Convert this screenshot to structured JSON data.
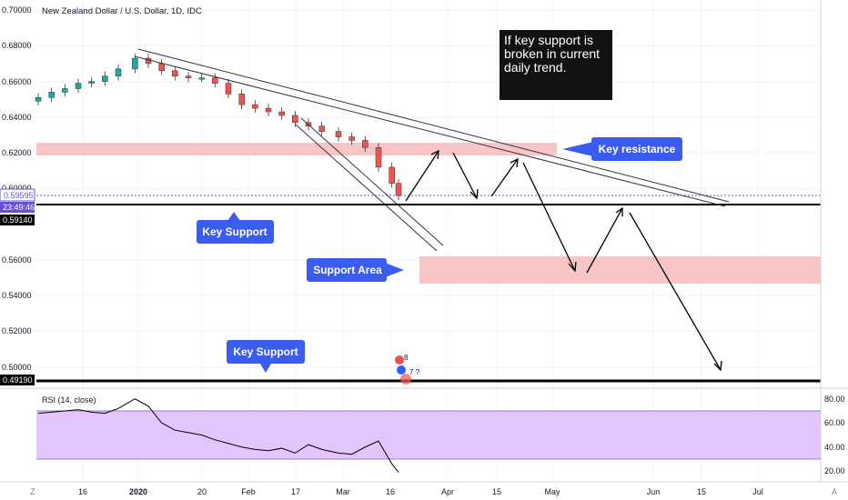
{
  "header": {
    "symbol_title": "New Zealand Dollar / U.S. Dollar, 1D, IDC"
  },
  "note": {
    "lines": [
      "If key support is",
      "broken in current",
      "daily trend."
    ]
  },
  "labels": {
    "key_resistance": "Key resistance",
    "key_support_1": "Key Support",
    "support_area": "Support Area",
    "key_support_2": "Key Support"
  },
  "price_axis": {
    "ticks": [
      "0.70000",
      "0.68000",
      "0.66000",
      "0.64000",
      "0.62000",
      "0.60000",
      "0.56000",
      "0.54000",
      "0.52000",
      "0.50000"
    ],
    "last_price": "0.59595",
    "countdown": "23:49:46",
    "support_level_1": "0.59140",
    "support_level_2": "0.49190"
  },
  "rsi": {
    "title": "RSI (14, close)",
    "ticks": [
      "80.00",
      "60.00",
      "40.00",
      "20.00"
    ]
  },
  "time_axis": {
    "labels": [
      "16",
      "2020",
      "20",
      "Feb",
      "17",
      "Mar",
      "16",
      "Apr",
      "15",
      "May",
      "Jun",
      "15",
      "Jul"
    ],
    "corner_left": "Z",
    "corner_right": "A"
  },
  "events": {
    "count_1": "8",
    "count_2": "7 ?"
  },
  "colors": {
    "up_candle": "#26a69a",
    "down_candle": "#ef5350",
    "zone_fill": "#f7c5c5",
    "label_fill": "#3b5cf0",
    "rsi_band": "#e1c5fc",
    "rsi_line": "#000000"
  },
  "chart_data": {
    "type": "candlestick",
    "ylim": [
      0.4815,
      0.7085
    ],
    "x": [
      "2019-12-02",
      "2019-12-06",
      "2019-12-10",
      "2019-12-14",
      "2019-12-18",
      "2019-12-22",
      "2019-12-26",
      "2019-12-31",
      "2020-01-04",
      "2020-01-08",
      "2020-01-12",
      "2020-01-16",
      "2020-01-20",
      "2020-01-24",
      "2020-01-28",
      "2020-02-01",
      "2020-02-05",
      "2020-02-09",
      "2020-02-13",
      "2020-02-17",
      "2020-02-21",
      "2020-02-25",
      "2020-03-01",
      "2020-03-05",
      "2020-03-09",
      "2020-03-13",
      "2020-03-17",
      "2020-03-19"
    ],
    "close": [
      0.651,
      0.654,
      0.656,
      0.659,
      0.66,
      0.663,
      0.667,
      0.673,
      0.67,
      0.666,
      0.663,
      0.662,
      0.662,
      0.659,
      0.653,
      0.647,
      0.645,
      0.643,
      0.641,
      0.637,
      0.635,
      0.632,
      0.629,
      0.627,
      0.623,
      0.612,
      0.603,
      0.596
    ],
    "resistance_zone": [
      0.6175,
      0.6235
    ],
    "support_area": [
      0.5465,
      0.562
    ],
    "key_support_levels": [
      0.5914,
      0.4919
    ],
    "last_price": 0.59595,
    "rsi": [
      68,
      69,
      70,
      71,
      69,
      68,
      72,
      80,
      74,
      60,
      54,
      52,
      50,
      46,
      43,
      40,
      38,
      37,
      39,
      35,
      42,
      38,
      35,
      34,
      40,
      45,
      26,
      19
    ]
  }
}
